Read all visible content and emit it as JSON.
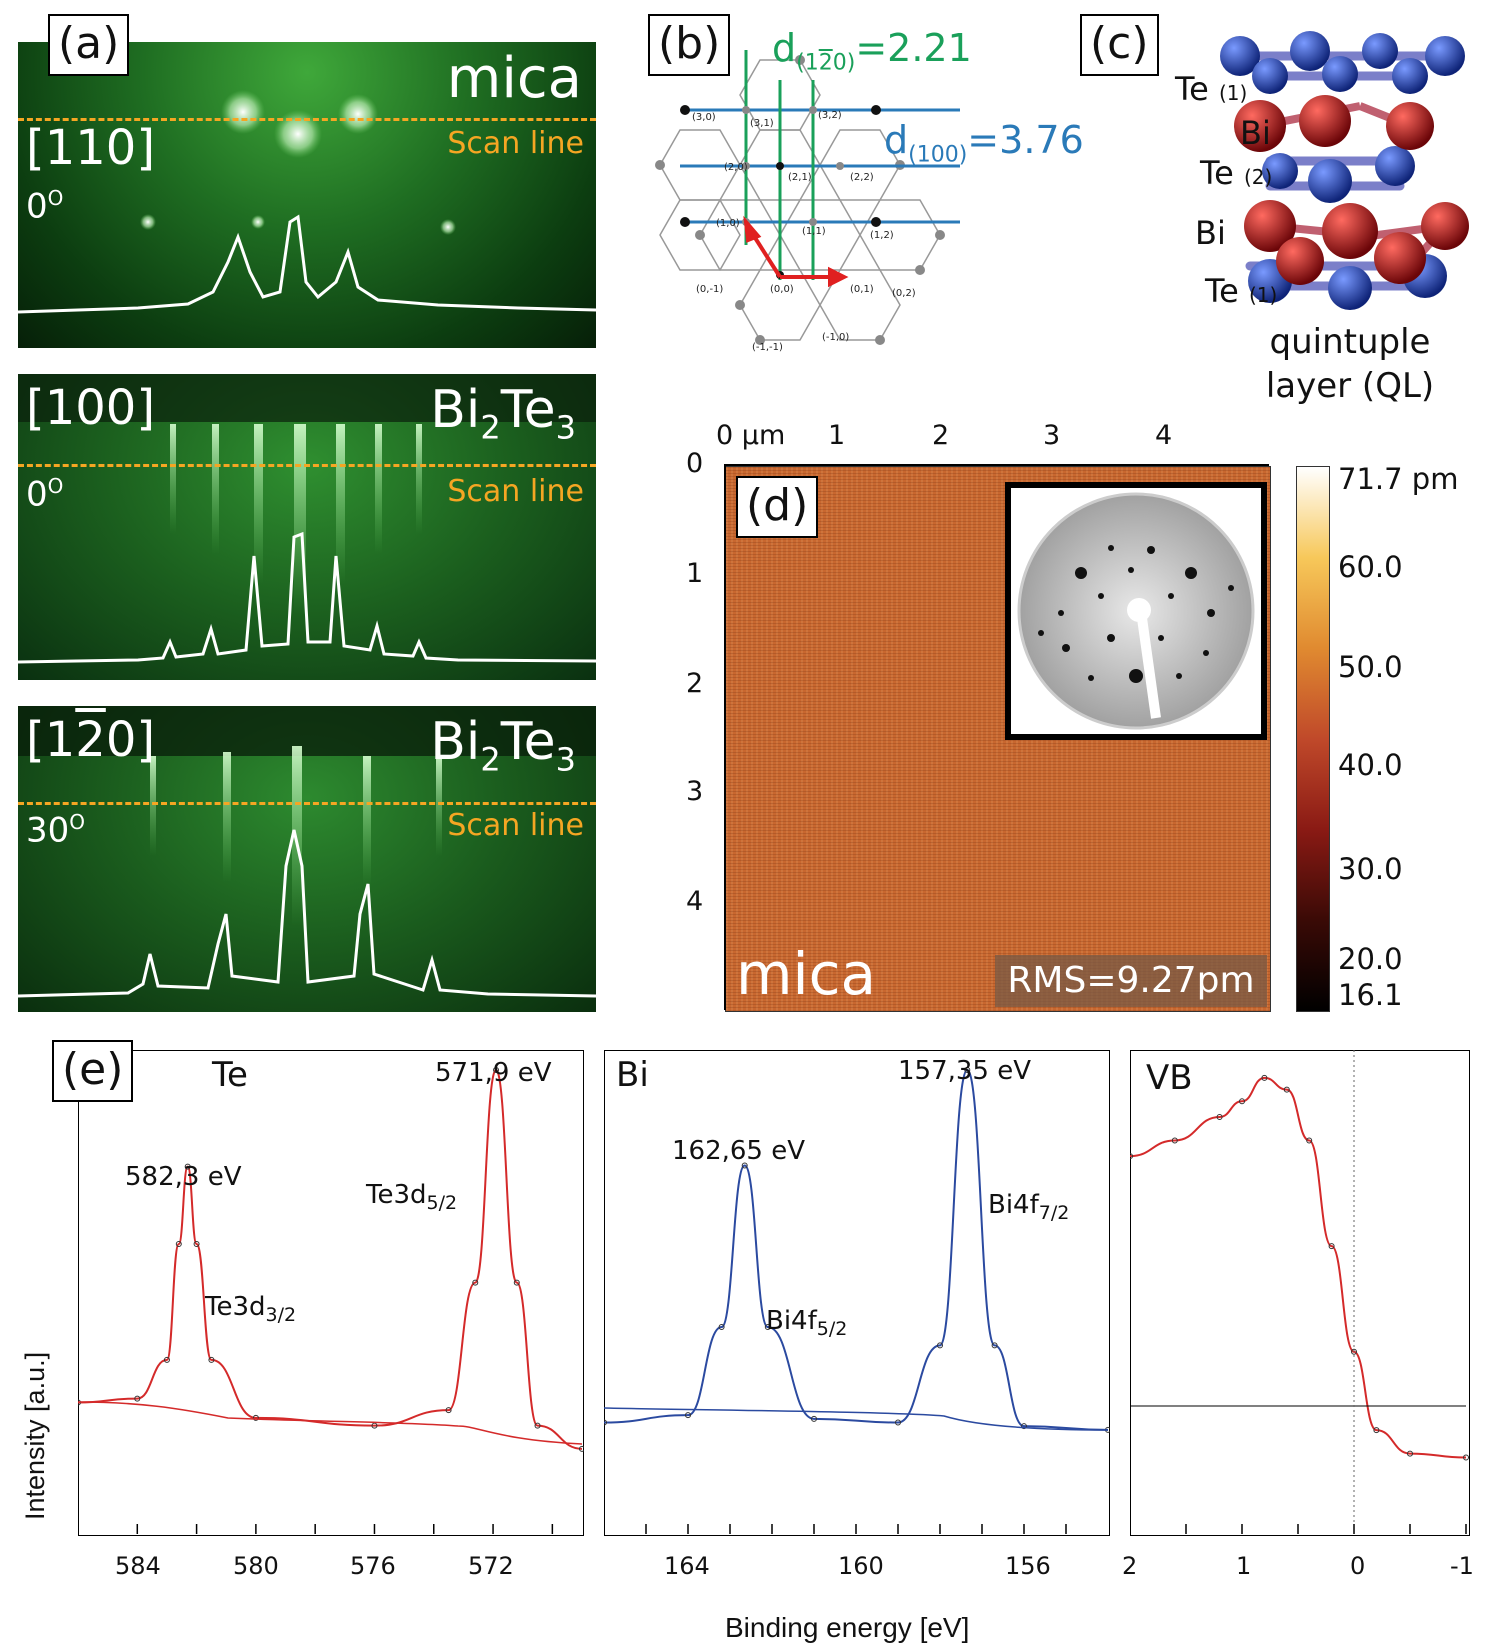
{
  "panel_a": {
    "label": "(a)",
    "scan_line": "Scan line",
    "frames": [
      {
        "direction": "[110]",
        "material": "mica",
        "material_sub": "",
        "angle": "0",
        "angle_sup": "O"
      },
      {
        "direction": "[100]",
        "material": "Bi",
        "material_sub": "2",
        "material2": "Te",
        "material2_sub": "3",
        "angle": "0",
        "angle_sup": "O"
      },
      {
        "direction": "[1",
        "direction_bar": "2",
        "direction_end": "0]",
        "material": "Bi",
        "material_sub": "2",
        "material2": "Te",
        "material2_sub": "3",
        "angle": "30",
        "angle_sup": "O"
      }
    ]
  },
  "panel_b": {
    "label": "(b)",
    "d_green_main": "d",
    "d_green_sub": "(1",
    "d_green_bar": "2",
    "d_green_sub_end": "0)",
    "d_green_value": "=2.21",
    "d_blue_main": "d",
    "d_blue_sub": "(100)",
    "d_blue_value": "=3.76",
    "points": [
      "(3,0)",
      "(3,1)",
      "(3,2)",
      "(2,0)",
      "(2,1)",
      "(2,2)",
      "(1,0)",
      "(1,1)",
      "(1,2)",
      "(0,-1)",
      "(0,0)",
      "(0,1)",
      "(0,2)",
      "(-1,-1)",
      "(-1,0)"
    ]
  },
  "panel_c": {
    "label": "(c)",
    "layers": [
      {
        "name": "Te",
        "sub": "(1)"
      },
      {
        "name": "Bi",
        "sub": ""
      },
      {
        "name": "Te",
        "sub": "(2)"
      },
      {
        "name": "Bi",
        "sub": ""
      },
      {
        "name": "Te",
        "sub": "(1)"
      }
    ],
    "caption_line1": "quintuple",
    "caption_line2": "layer (QL)",
    "colors": {
      "te": "#1f3fa8",
      "bi": "#b01418",
      "bond": "#7b7fc9"
    }
  },
  "panel_d": {
    "label": "(d)",
    "x_ticks": [
      "0 µm",
      "1",
      "2",
      "3",
      "4"
    ],
    "y_ticks": [
      "0",
      "1",
      "2",
      "3",
      "4"
    ],
    "substrate": "mica",
    "rms": "RMS=9.27pm",
    "colorbar_ticks": [
      "71.7 pm",
      "60.0",
      "50.0",
      "40.0",
      "30.0",
      "20.0",
      "16.1"
    ],
    "colorbar_colors": [
      "#ffffff",
      "#f7c85a",
      "#e08a30",
      "#c0492a",
      "#8a1a14",
      "#3a0a06",
      "#000000"
    ]
  },
  "panel_e": {
    "label": "(e)",
    "ylabel": "Intensity [a.u.]",
    "xlabel": "Binding energy [eV]",
    "te": {
      "title": "Te",
      "x_ticks": [
        "584",
        "580",
        "576",
        "572"
      ],
      "peak1_energy": "582,3 eV",
      "peak1_name": "Te3d",
      "peak1_sub": "3/2",
      "peak2_energy": "571,9 eV",
      "peak2_name": "Te3d",
      "peak2_sub": "5/2",
      "color": "#d42a2a"
    },
    "bi": {
      "title": "Bi",
      "x_ticks": [
        "164",
        "160",
        "156"
      ],
      "peak1_energy": "162,65 eV",
      "peak1_name": "Bi4f",
      "peak1_sub": "5/2",
      "peak2_energy": "157,35 eV",
      "peak2_name": "Bi4f",
      "peak2_sub": "7/2",
      "color": "#2b4aa0"
    },
    "vb": {
      "title": "VB",
      "x_ticks": [
        "2",
        "1",
        "0",
        "-1"
      ],
      "color": "#d42a2a"
    }
  },
  "chart_data": [
    {
      "type": "line",
      "title": "Te",
      "xlabel": "Binding energy [eV]",
      "ylabel": "Intensity [a.u.]",
      "xlim": [
        586,
        569
      ],
      "series": [
        {
          "name": "Te3d",
          "x": [
            586,
            584,
            583,
            582.6,
            582.3,
            582,
            581.5,
            580,
            576,
            573.5,
            572.6,
            571.9,
            571.2,
            570.5,
            569
          ],
          "y": [
            0.14,
            0.15,
            0.25,
            0.55,
            0.75,
            0.55,
            0.25,
            0.1,
            0.08,
            0.12,
            0.45,
            1.0,
            0.45,
            0.08,
            0.02
          ]
        }
      ]
    },
    {
      "type": "line",
      "title": "Bi",
      "xlabel": "Binding energy [eV]",
      "ylabel": "Intensity [a.u.]",
      "xlim": [
        166,
        154
      ],
      "series": [
        {
          "name": "Bi4f",
          "x": [
            166,
            164,
            163.2,
            162.65,
            162.1,
            161,
            159,
            158,
            157.35,
            156.7,
            156,
            154
          ],
          "y": [
            0.04,
            0.06,
            0.3,
            0.74,
            0.3,
            0.05,
            0.04,
            0.25,
            1.0,
            0.25,
            0.03,
            0.02
          ]
        }
      ]
    },
    {
      "type": "line",
      "title": "VB",
      "xlabel": "Binding energy [eV]",
      "xlim": [
        2,
        -1
      ],
      "series": [
        {
          "name": "VB",
          "x": [
            2,
            1.6,
            1.2,
            1.0,
            0.8,
            0.6,
            0.4,
            0.2,
            0.0,
            -0.2,
            -0.5,
            -1.0
          ],
          "y": [
            0.78,
            0.82,
            0.88,
            0.92,
            0.98,
            0.95,
            0.82,
            0.55,
            0.28,
            0.08,
            0.02,
            0.01
          ]
        }
      ]
    }
  ]
}
